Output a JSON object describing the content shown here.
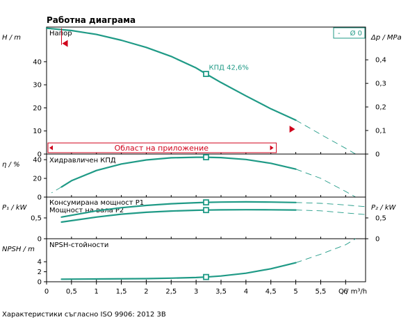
{
  "title": "Работна диаграма",
  "footnote": "Характеристики съгласно ISO 9906: 2012 3B",
  "legend": {
    "dash": "-",
    "label": "Ø 0"
  },
  "colors": {
    "curve": "#1f9a86",
    "red": "#d0021b",
    "frame": "#000000"
  },
  "annotations": {
    "bep_label": "КПД  42,6%",
    "application_range": "Област на приложение"
  },
  "chart_data": {
    "type": "line",
    "x_axis": {
      "label": "Q / m³/h",
      "range": [
        0,
        6.4
      ],
      "ticks": [
        0,
        0.5,
        1,
        1.5,
        2,
        2.5,
        3,
        3.5,
        4,
        4.5,
        5,
        5.5,
        6
      ],
      "tick_labels": [
        "0",
        "0,5",
        "1",
        "1,5",
        "2",
        "2,5",
        "3",
        "3,5",
        "4",
        "4,5",
        "5",
        "5,5",
        "6"
      ]
    },
    "bep_q": 3.2,
    "application_range_q": [
      0.3,
      5.0
    ],
    "panels": [
      {
        "name": "Напор",
        "ylabel": "H / m",
        "yrange": [
          0,
          55
        ],
        "yticks": [
          0,
          10,
          20,
          30,
          40
        ],
        "ytick_labels": [
          "0",
          "10",
          "20",
          "30",
          "40"
        ],
        "right_label": "Δp / MPa",
        "right_range": [
          0,
          0.539
        ],
        "right_ticks": [
          0,
          0.1,
          0.2,
          0.3,
          0.4
        ],
        "right_tick_labels": [
          "0",
          "0,1",
          "0,2",
          "0,3",
          "0,4"
        ],
        "series": [
          {
            "solid": [
              [
                0,
                54.5
              ],
              [
                0.5,
                53.5
              ],
              [
                1,
                51.8
              ],
              [
                1.5,
                49.3
              ],
              [
                2,
                46.2
              ],
              [
                2.5,
                42.3
              ],
              [
                3,
                37.3
              ],
              [
                3.2,
                34.7
              ],
              [
                3.5,
                31.0
              ],
              [
                4,
                25.2
              ],
              [
                4.5,
                19.6
              ],
              [
                5,
                14.7
              ]
            ],
            "dashed": [
              [
                5,
                14.7
              ],
              [
                5.5,
                8.5
              ],
              [
                6,
                2.5
              ],
              [
                6.2,
                0
              ]
            ]
          }
        ]
      },
      {
        "name": "Хидравличен КПД",
        "ylabel": "η / %",
        "yrange": [
          0,
          46
        ],
        "yticks": [
          0,
          20,
          40
        ],
        "ytick_labels": [
          "0",
          "20",
          "40"
        ],
        "series": [
          {
            "solid": [
              [
                0.3,
                10.8
              ],
              [
                0.5,
                17.5
              ],
              [
                1,
                28.4
              ],
              [
                1.5,
                35.4
              ],
              [
                2,
                39.7
              ],
              [
                2.5,
                42.0
              ],
              [
                3,
                42.6
              ],
              [
                3.2,
                42.6
              ],
              [
                3.5,
                42.2
              ],
              [
                4,
                40.2
              ],
              [
                4.5,
                36.1
              ],
              [
                5,
                29.9
              ]
            ],
            "dashed": [
              [
                0.3,
                10.8
              ],
              [
                0.1,
                4.5
              ]
            ]
          },
          {
            "solid": [],
            "dashed": [
              [
                5,
                29.9
              ],
              [
                5.5,
                20.0
              ],
              [
                6,
                6.0
              ],
              [
                6.2,
                0
              ]
            ]
          }
        ]
      },
      {
        "name": "",
        "series_labels": [
          "Консумирана мощност P1",
          "Мощност на вала P2"
        ],
        "ylabel": "P₁ / kW",
        "yrange": [
          0,
          1.0
        ],
        "yticks": [
          0,
          0.5
        ],
        "ytick_labels": [
          "0",
          "0,5"
        ],
        "right_label": "P₂ / kW",
        "right_range": [
          0,
          1.0
        ],
        "right_ticks": [
          0,
          0.5
        ],
        "right_tick_labels": [
          "0",
          "0,5"
        ],
        "series": [
          {
            "name": "Консумирана мощност P1",
            "solid": [
              [
                0.3,
                0.52
              ],
              [
                1,
                0.67
              ],
              [
                1.5,
                0.745
              ],
              [
                2,
                0.8
              ],
              [
                2.5,
                0.84
              ],
              [
                3,
                0.865
              ],
              [
                3.2,
                0.873
              ],
              [
                3.5,
                0.88
              ],
              [
                4,
                0.885
              ],
              [
                4.5,
                0.88
              ],
              [
                5,
                0.87
              ]
            ],
            "dashed": [
              [
                5,
                0.87
              ],
              [
                5.5,
                0.85
              ],
              [
                6,
                0.81
              ],
              [
                6.4,
                0.77
              ]
            ]
          },
          {
            "name": "Мощност на вала P2",
            "solid": [
              [
                0.3,
                0.4
              ],
              [
                1,
                0.52
              ],
              [
                1.5,
                0.59
              ],
              [
                2,
                0.635
              ],
              [
                2.5,
                0.665
              ],
              [
                3,
                0.683
              ],
              [
                3.2,
                0.688
              ],
              [
                3.5,
                0.693
              ],
              [
                4,
                0.697
              ],
              [
                4.5,
                0.695
              ],
              [
                5,
                0.69
              ]
            ],
            "dashed": [
              [
                5,
                0.69
              ],
              [
                5.5,
                0.67
              ],
              [
                6,
                0.62
              ],
              [
                6.4,
                0.58
              ]
            ]
          }
        ]
      },
      {
        "name": "NPSH-стойности",
        "ylabel": "NPSH  / m",
        "yrange": [
          0,
          8.6
        ],
        "yticks": [
          0,
          2,
          4
        ],
        "ytick_labels": [
          "0",
          "2",
          "4"
        ],
        "series": [
          {
            "solid": [
              [
                0.3,
                0.52
              ],
              [
                1,
                0.55
              ],
              [
                2,
                0.62
              ],
              [
                2.5,
                0.72
              ],
              [
                3,
                0.85
              ],
              [
                3.2,
                0.95
              ],
              [
                3.5,
                1.15
              ],
              [
                4,
                1.7
              ],
              [
                4.5,
                2.6
              ],
              [
                5,
                3.8
              ]
            ],
            "dashed": [
              [
                5,
                3.8
              ],
              [
                5.5,
                5.5
              ],
              [
                6,
                7.4
              ],
              [
                6.2,
                8.6
              ]
            ]
          }
        ]
      }
    ]
  }
}
